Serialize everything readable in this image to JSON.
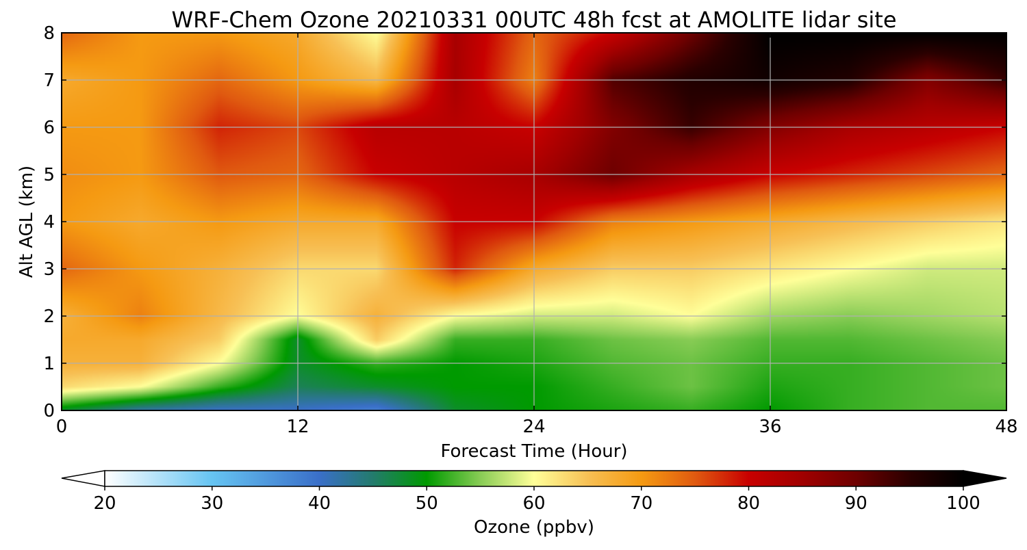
{
  "chart_data": {
    "type": "heatmap",
    "title": "WRF-Chem Ozone  20210331 00UTC 48h fcst at AMOLITE lidar site",
    "xlabel": "Forecast Time (Hour)",
    "ylabel": "Alt AGL (km)",
    "xlim": [
      0,
      48
    ],
    "ylim": [
      0,
      8
    ],
    "xticks": [
      0,
      12,
      24,
      36,
      48
    ],
    "yticks": [
      0,
      1,
      2,
      3,
      4,
      5,
      6,
      7,
      8
    ],
    "grid": true,
    "colorbar": {
      "label": "Ozone  (ppbv)",
      "min": 20,
      "max": 100,
      "ticks": [
        20,
        30,
        40,
        50,
        60,
        70,
        80,
        90,
        100
      ],
      "extend": "both",
      "stops": [
        {
          "v": 20,
          "c": "#ffffff"
        },
        {
          "v": 30,
          "c": "#66c4f2"
        },
        {
          "v": 40,
          "c": "#3a6fc8"
        },
        {
          "v": 45,
          "c": "#237b6c"
        },
        {
          "v": 50,
          "c": "#009a00"
        },
        {
          "v": 55,
          "c": "#88cc55"
        },
        {
          "v": 60,
          "c": "#ffff99"
        },
        {
          "v": 65,
          "c": "#f7c055"
        },
        {
          "v": 70,
          "c": "#f59a12"
        },
        {
          "v": 75,
          "c": "#e05a10"
        },
        {
          "v": 80,
          "c": "#c80000"
        },
        {
          "v": 85,
          "c": "#a00000"
        },
        {
          "v": 90,
          "c": "#6e0000"
        },
        {
          "v": 95,
          "c": "#2a0000"
        },
        {
          "v": 100,
          "c": "#000000"
        }
      ]
    },
    "x": [
      0,
      4,
      8,
      12,
      16,
      20,
      24,
      28,
      32,
      36,
      40,
      44,
      48
    ],
    "y": [
      0,
      0.5,
      1,
      1.5,
      2,
      3,
      4,
      5,
      6,
      7,
      8
    ],
    "z": [
      [
        48,
        42,
        40,
        40,
        38,
        48,
        50,
        51,
        52,
        50,
        52,
        53,
        53
      ],
      [
        63,
        60,
        52,
        46,
        48,
        50,
        50,
        52,
        54,
        51,
        52,
        53,
        54
      ],
      [
        67,
        67,
        60,
        48,
        52,
        50,
        51,
        53,
        54,
        52,
        52,
        53,
        54
      ],
      [
        68,
        68,
        64,
        48,
        64,
        52,
        52,
        54,
        55,
        53,
        53,
        54,
        55
      ],
      [
        67,
        72,
        66,
        60,
        67,
        60,
        58,
        58,
        60,
        56,
        55,
        56,
        57
      ],
      [
        74,
        70,
        67,
        63,
        63,
        78,
        68,
        64,
        64,
        62,
        60,
        58,
        58
      ],
      [
        70,
        68,
        70,
        68,
        68,
        80,
        80,
        72,
        70,
        68,
        66,
        64,
        62
      ],
      [
        71,
        70,
        75,
        74,
        80,
        82,
        84,
        90,
        84,
        80,
        78,
        76,
        74
      ],
      [
        70,
        70,
        78,
        76,
        82,
        82,
        80,
        88,
        94,
        88,
        84,
        82,
        80
      ],
      [
        68,
        70,
        74,
        70,
        66,
        84,
        72,
        92,
        96,
        98,
        96,
        88,
        94
      ],
      [
        74,
        70,
        70,
        68,
        60,
        84,
        74,
        80,
        90,
        100,
        100,
        100,
        100
      ]
    ]
  }
}
